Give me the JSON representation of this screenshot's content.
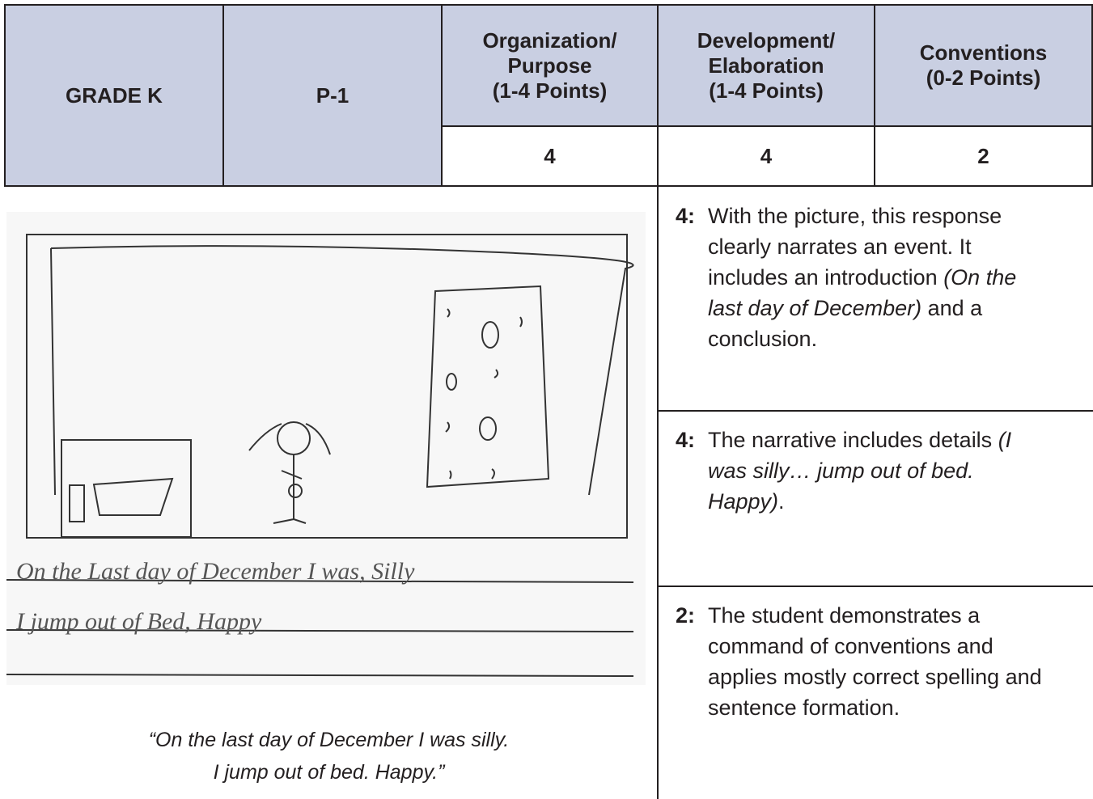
{
  "header": {
    "grade": "GRADE K",
    "paper": "P-1",
    "criteria": [
      {
        "title_lines": [
          "Organization/",
          "Purpose",
          "(1-4 Points)"
        ],
        "score": 4
      },
      {
        "title_lines": [
          "Development/",
          "Elaboration",
          "(1-4 Points)"
        ],
        "score": 4
      },
      {
        "title_lines": [
          "Conventions",
          "(0-2 Points)"
        ],
        "score": 2
      }
    ]
  },
  "student_work": {
    "handwriting": [
      "On the Last day of December I was, Silly",
      "I jump out of Bed, Happy"
    ],
    "transcription": [
      "“On the last day of December I was silly.",
      "I jump out of bed. Happy.”"
    ]
  },
  "rationales": [
    {
      "label": "4:",
      "segments": [
        {
          "text": "With the picture, this response clearly narrates an event. It includes an introduction ",
          "italic": false
        },
        {
          "text": "(On the last day of December)",
          "italic": true
        },
        {
          "text": " and a conclusion.",
          "italic": false
        }
      ]
    },
    {
      "label": "4:",
      "segments": [
        {
          "text": "The narrative includes details ",
          "italic": false
        },
        {
          "text": "(I was silly… jump out of bed. Happy)",
          "italic": true
        },
        {
          "text": ".",
          "italic": false
        }
      ]
    },
    {
      "label": "2:",
      "segments": [
        {
          "text": "The student demonstrates a command of conventions and applies mostly correct spelling and sentence formation.",
          "italic": false
        }
      ]
    }
  ]
}
